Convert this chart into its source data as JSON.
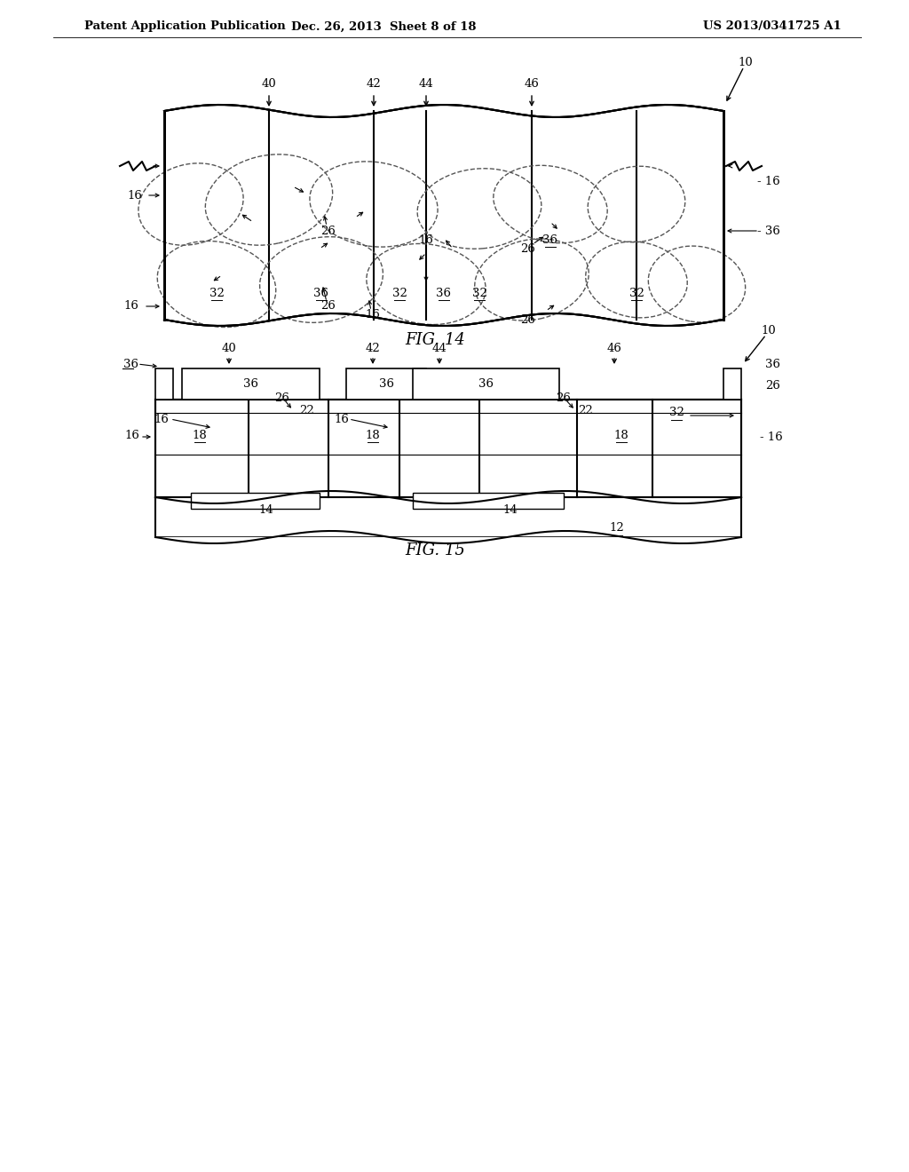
{
  "bg_color": "#ffffff",
  "header_text": "Patent Application Publication",
  "header_date": "Dec. 26, 2013  Sheet 8 of 18",
  "header_patent": "US 2013/0341725 A1",
  "fig14_label": "FIG. 14",
  "fig15_label": "FIG. 15"
}
